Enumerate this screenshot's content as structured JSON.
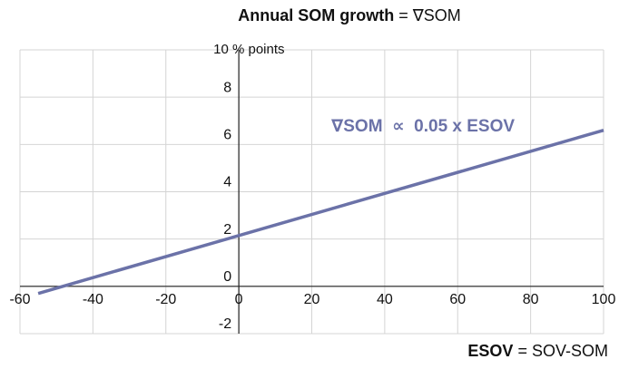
{
  "chart_data": {
    "type": "line",
    "title": [
      "Annual SOM growth",
      "= ∇SOM"
    ],
    "x_label": [
      "ESOV",
      "= SOV-SOM"
    ],
    "annotation": "∇SOM  ∝  0.05 x ESOV",
    "x": [
      -55,
      100
    ],
    "series": [
      {
        "name": "∇SOM",
        "color": "#6b72a8",
        "values": [
          -0.3,
          6.6
        ]
      }
    ],
    "xlim": [
      -60,
      100
    ],
    "xticks": [
      -60,
      -40,
      -20,
      0,
      20,
      40,
      60,
      80,
      100
    ],
    "ylim": [
      -2,
      10
    ],
    "yticks": [
      -2,
      0,
      2,
      4,
      6,
      8,
      {
        "value": 10,
        "label": "10 % points"
      }
    ],
    "grid": true
  }
}
